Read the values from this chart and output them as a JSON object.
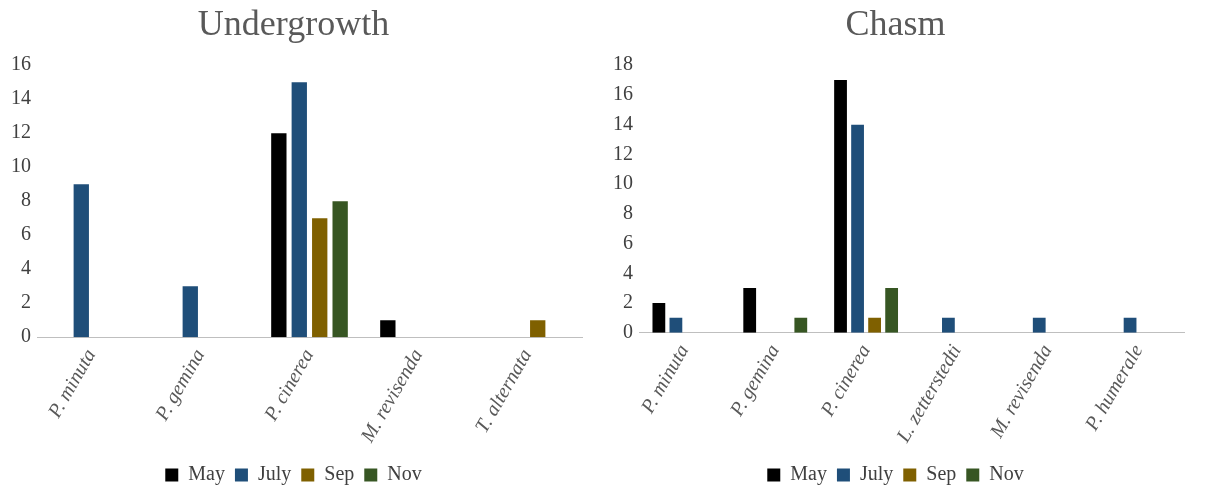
{
  "chart_data": [
    {
      "type": "bar",
      "title": "Undergrowth",
      "categories": [
        "P. minuta",
        "P. gemina",
        "P. cinerea",
        "M. revisenda",
        "T. alternata"
      ],
      "series": [
        {
          "name": "May",
          "color": "#000000",
          "values": [
            0,
            0,
            12,
            1,
            0
          ]
        },
        {
          "name": "July",
          "color": "#1f4e79",
          "values": [
            9,
            3,
            15,
            0,
            0
          ]
        },
        {
          "name": "Sep",
          "color": "#7f6000",
          "values": [
            0,
            0,
            7,
            0,
            1
          ]
        },
        {
          "name": "Nov",
          "color": "#375623",
          "values": [
            0,
            0,
            8,
            0,
            0
          ]
        }
      ],
      "ylim": [
        0,
        16
      ],
      "yticks": [
        0,
        2,
        4,
        6,
        8,
        10,
        12,
        14,
        16
      ],
      "grid": false,
      "legend": "bottom"
    },
    {
      "type": "bar",
      "title": "Chasm",
      "categories": [
        "P. minuta",
        "P. gemina",
        "P. cinerea",
        "L. zetterstedti",
        "M. revisenda",
        "P. humerale"
      ],
      "series": [
        {
          "name": "May",
          "color": "#000000",
          "values": [
            2,
            3,
            17,
            0,
            0,
            0
          ]
        },
        {
          "name": "July",
          "color": "#1f4e79",
          "values": [
            1,
            0,
            14,
            1,
            1,
            1
          ]
        },
        {
          "name": "Sep",
          "color": "#7f6000",
          "values": [
            0,
            0,
            1,
            0,
            0,
            0
          ]
        },
        {
          "name": "Nov",
          "color": "#375623",
          "values": [
            0,
            1,
            3,
            0,
            0,
            0
          ]
        }
      ],
      "ylim": [
        0,
        18
      ],
      "yticks": [
        0,
        2,
        4,
        6,
        8,
        10,
        12,
        14,
        16,
        18
      ],
      "grid": false,
      "legend": "bottom"
    }
  ]
}
